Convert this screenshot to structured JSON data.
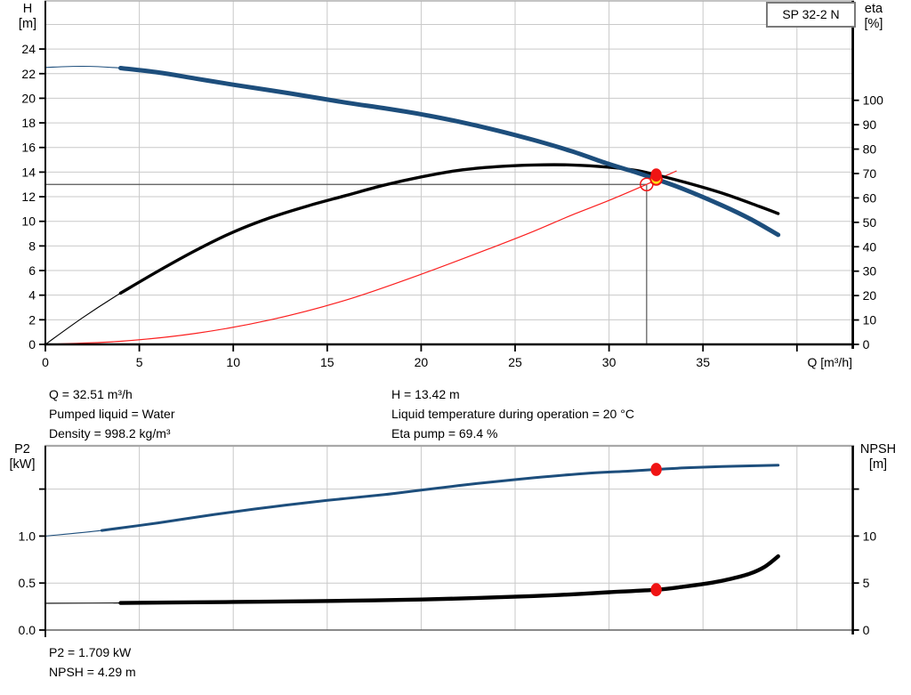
{
  "title_box": {
    "label": "SP 32-2 N"
  },
  "colors": {
    "curve_blue": "#1d4e7c",
    "curve_black": "#000000",
    "curve_red": "#fb1f1f",
    "marker_red": "#f01414",
    "marker_yellow": "#ffdf1a",
    "grid": "#c9c9c9",
    "axis": "#000000",
    "crosshair": "#565656",
    "border_top": "#b0b0b0"
  },
  "info_top": {
    "left": [
      "Q = 32.51 m³/h",
      "Pumped liquid = Water",
      "Density = 998.2 kg/m³"
    ],
    "right": [
      "H = 13.42 m",
      "Liquid temperature during operation = 20 °C",
      "Eta pump = 69.4 %"
    ]
  },
  "info_bottom": [
    "P2 = 1.709 kW",
    "NPSH = 4.29 m"
  ],
  "chart_data": [
    {
      "type": "line",
      "title": "SP 32-2 N",
      "x_axis": {
        "label": "Q [m³/h]",
        "min": 0,
        "max": 40,
        "ticks": [
          {
            "v": 0,
            "l": "0"
          },
          {
            "v": 5,
            "l": "5"
          },
          {
            "v": 10,
            "l": "10"
          },
          {
            "v": 15,
            "l": "15"
          },
          {
            "v": 20,
            "l": "20"
          },
          {
            "v": 25,
            "l": "25"
          },
          {
            "v": 30,
            "l": "30"
          },
          {
            "v": 35,
            "l": "35"
          },
          {
            "v": 40,
            "l": ""
          }
        ],
        "grid": [
          5,
          10,
          15,
          20,
          25,
          30,
          35,
          40
        ]
      },
      "y_left": {
        "label": "H [m]",
        "label_lines": [
          "H",
          "[m]"
        ],
        "min": 0,
        "max": 26,
        "ticks": [
          {
            "v": 0,
            "l": "0"
          },
          {
            "v": 2,
            "l": "2"
          },
          {
            "v": 4,
            "l": "4"
          },
          {
            "v": 6,
            "l": "6"
          },
          {
            "v": 8,
            "l": "8"
          },
          {
            "v": 10,
            "l": "10"
          },
          {
            "v": 12,
            "l": "12"
          },
          {
            "v": 14,
            "l": "14"
          },
          {
            "v": 16,
            "l": "16"
          },
          {
            "v": 18,
            "l": "18"
          },
          {
            "v": 20,
            "l": "20"
          },
          {
            "v": 22,
            "l": "22"
          },
          {
            "v": 24,
            "l": "24"
          }
        ],
        "grid": [
          2,
          4,
          6,
          8,
          10,
          12,
          14,
          16,
          18,
          20,
          22,
          24,
          26
        ]
      },
      "y_right": {
        "label": "eta [%]",
        "label_lines": [
          "eta",
          "[%]"
        ],
        "min": 0,
        "max": 100,
        "ticks": [
          {
            "v": 0,
            "l": "0"
          },
          {
            "v": 10,
            "l": "10"
          },
          {
            "v": 20,
            "l": "20"
          },
          {
            "v": 30,
            "l": "30"
          },
          {
            "v": 40,
            "l": "40"
          },
          {
            "v": 50,
            "l": "50"
          },
          {
            "v": 60,
            "l": "60"
          },
          {
            "v": 70,
            "l": "70"
          },
          {
            "v": 80,
            "l": "80"
          },
          {
            "v": 90,
            "l": "90"
          },
          {
            "v": 100,
            "l": "100"
          }
        ]
      },
      "crosshair": {
        "q": 32,
        "h": 13
      },
      "series": [
        {
          "name": "system-curve",
          "axis": "left",
          "color": "#fb1f1f",
          "width": 1.2,
          "thin_until": 0,
          "points": [
            [
              0,
              0
            ],
            [
              4,
              0.25
            ],
            [
              8,
              0.9
            ],
            [
              12,
              2.0
            ],
            [
              16,
              3.6
            ],
            [
              20,
              5.7
            ],
            [
              24,
              8.0
            ],
            [
              26,
              9.2
            ],
            [
              28,
              10.5
            ],
            [
              30,
              11.7
            ],
            [
              32,
              13.0
            ],
            [
              33.6,
              14.1
            ]
          ]
        },
        {
          "name": "efficiency-curve-eta",
          "axis": "right",
          "color": "#000000",
          "width": 3.4,
          "thin_until": 4,
          "points": [
            [
              0,
              0
            ],
            [
              2,
              11
            ],
            [
              4,
              21
            ],
            [
              6,
              30
            ],
            [
              8,
              38.5
            ],
            [
              10,
              46
            ],
            [
              12,
              52
            ],
            [
              14,
              56.8
            ],
            [
              16,
              61
            ],
            [
              18,
              65.2
            ],
            [
              20,
              68.6
            ],
            [
              22,
              71.3
            ],
            [
              24,
              72.8
            ],
            [
              26,
              73.5
            ],
            [
              28,
              73.5
            ],
            [
              30,
              72.6
            ],
            [
              31.5,
              71.2
            ],
            [
              32.51,
              69.4
            ],
            [
              34,
              66.5
            ],
            [
              36,
              62
            ],
            [
              38,
              56.5
            ],
            [
              39,
              53.6
            ]
          ]
        },
        {
          "name": "pump-curve-qh",
          "axis": "left",
          "color": "#1d4e7c",
          "width": 5,
          "thin_until": 3,
          "points": [
            [
              0,
              22.5
            ],
            [
              2,
              22.6
            ],
            [
              4,
              22.45
            ],
            [
              6,
              22.1
            ],
            [
              8,
              21.6
            ],
            [
              10,
              21.1
            ],
            [
              13,
              20.4
            ],
            [
              16,
              19.65
            ],
            [
              18,
              19.2
            ],
            [
              20,
              18.7
            ],
            [
              22,
              18.1
            ],
            [
              24,
              17.4
            ],
            [
              26,
              16.6
            ],
            [
              28,
              15.7
            ],
            [
              30,
              14.65
            ],
            [
              31.5,
              13.95
            ],
            [
              32.51,
              13.42
            ],
            [
              34,
              12.6
            ],
            [
              36,
              11.3
            ],
            [
              37.5,
              10.2
            ],
            [
              39,
              8.9
            ]
          ]
        }
      ],
      "markers": [
        {
          "name": "requested-duty-point",
          "type": "ring",
          "axis": "left",
          "x": 32,
          "y": 13
        },
        {
          "name": "duty-point",
          "type": "duty",
          "axis": "left",
          "x": 32.51,
          "y": 13.42
        },
        {
          "name": "eta-point",
          "type": "dot",
          "axis": "right",
          "x": 32.51,
          "y": 69.4
        }
      ],
      "duty_point": {
        "Q": 32.51,
        "H": 13.42,
        "eta": 69.4
      }
    },
    {
      "type": "line",
      "title": "P2 / NPSH",
      "x_axis": {
        "label": "",
        "min": 0,
        "max": 40,
        "ticks": [
          {
            "v": 0,
            "l": ""
          }
        ],
        "grid": [
          5,
          10,
          15,
          20,
          25,
          30,
          35,
          40
        ]
      },
      "y_left": {
        "label": "P2 [kW]",
        "label_lines": [
          "P2",
          "[kW]"
        ],
        "min": 0,
        "max": 1.96,
        "ticks": [
          {
            "v": 0,
            "l": "0.0"
          },
          {
            "v": 0.5,
            "l": "0.5"
          },
          {
            "v": 1,
            "l": "1.0"
          },
          {
            "v": 1.5,
            "l": ""
          }
        ],
        "grid": [
          0.5,
          1.0,
          1.5
        ]
      },
      "y_right": {
        "label": "NPSH [m]",
        "label_lines": [
          "NPSH",
          "[m]"
        ],
        "min": 0,
        "max": 19.6,
        "ticks": [
          {
            "v": 0,
            "l": "0"
          },
          {
            "v": 5,
            "l": "5"
          },
          {
            "v": 10,
            "l": "10"
          },
          {
            "v": 15,
            "l": ""
          }
        ]
      },
      "series": [
        {
          "name": "power-curve-p2",
          "axis": "left",
          "color": "#1d4e7c",
          "width": 3,
          "thin_until": 2.8,
          "points": [
            [
              0,
              1.0
            ],
            [
              3,
              1.06
            ],
            [
              6,
              1.14
            ],
            [
              9,
              1.23
            ],
            [
              12,
              1.31
            ],
            [
              15,
              1.38
            ],
            [
              18,
              1.44
            ],
            [
              20,
              1.49
            ],
            [
              23,
              1.56
            ],
            [
              26,
              1.62
            ],
            [
              29,
              1.67
            ],
            [
              31,
              1.69
            ],
            [
              32.51,
              1.709
            ],
            [
              34,
              1.725
            ],
            [
              36,
              1.74
            ],
            [
              38,
              1.75
            ],
            [
              39,
              1.755
            ]
          ]
        },
        {
          "name": "npsh-curve",
          "axis": "right",
          "color": "#000000",
          "width": 4.4,
          "thin_until": 2.8,
          "points": [
            [
              0,
              2.85
            ],
            [
              4,
              2.88
            ],
            [
              8,
              2.95
            ],
            [
              12,
              3.02
            ],
            [
              16,
              3.12
            ],
            [
              20,
              3.25
            ],
            [
              23,
              3.42
            ],
            [
              26,
              3.62
            ],
            [
              28,
              3.8
            ],
            [
              30,
              4.02
            ],
            [
              32.51,
              4.29
            ],
            [
              34,
              4.62
            ],
            [
              35.5,
              5.05
            ],
            [
              36.5,
              5.45
            ],
            [
              37.5,
              6.0
            ],
            [
              38.3,
              6.75
            ],
            [
              39,
              7.85
            ]
          ]
        }
      ],
      "markers": [
        {
          "name": "p2-point",
          "type": "dot",
          "axis": "left",
          "x": 32.51,
          "y": 1.709
        },
        {
          "name": "npsh-point",
          "type": "dot",
          "axis": "right",
          "x": 32.51,
          "y": 4.29
        }
      ],
      "duty_point": {
        "P2": 1.709,
        "NPSH": 4.29
      }
    }
  ]
}
